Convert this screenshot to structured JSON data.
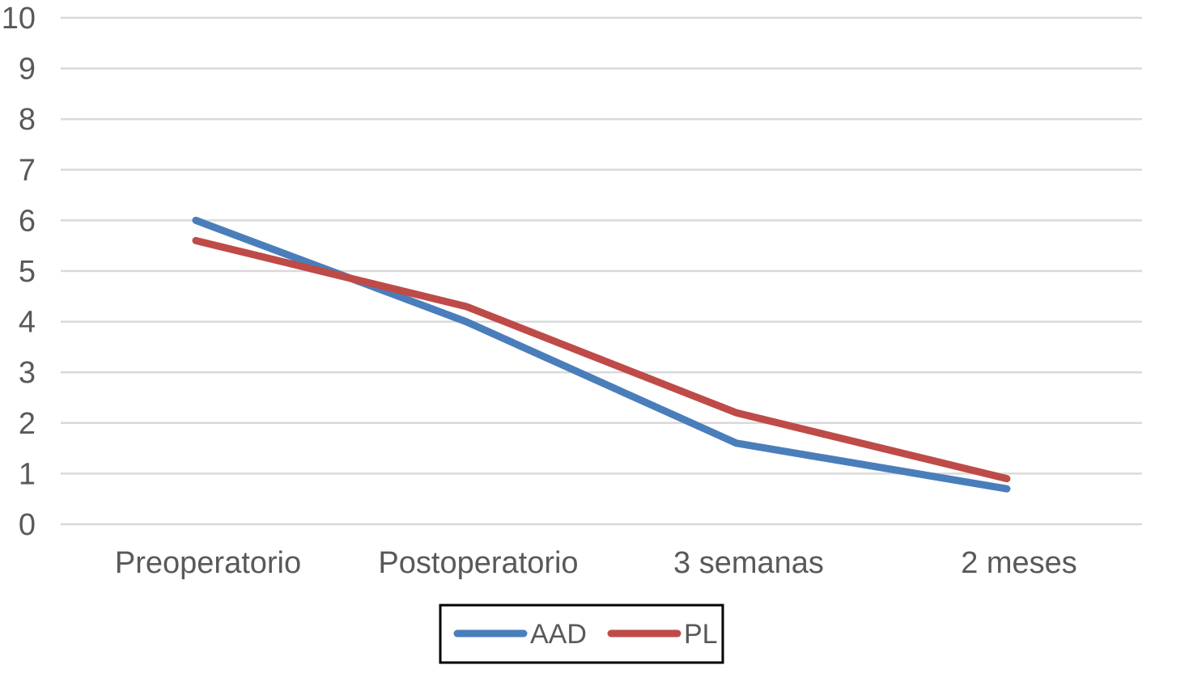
{
  "chart_data": {
    "type": "line",
    "title": "",
    "xlabel": "",
    "ylabel": "",
    "categories": [
      "Preoperatorio",
      "Postoperatorio",
      "3 semanas",
      "2 meses"
    ],
    "ylim": [
      0,
      10
    ],
    "yticks": [
      "0",
      "1",
      "2",
      "3",
      "4",
      "5",
      "6",
      "7",
      "8",
      "9",
      "10"
    ],
    "grid": true,
    "legend_position": "bottom",
    "series": [
      {
        "name": "AAD",
        "values": [
          6.0,
          4.0,
          1.6,
          0.7
        ],
        "color": "#4a7ebb"
      },
      {
        "name": "PL",
        "values": [
          5.6,
          4.3,
          2.2,
          0.9
        ],
        "color": "#be4b48"
      }
    ],
    "colors": {
      "grid": "#d9d9d9",
      "text": "#595959",
      "legend_border": "#000000"
    }
  }
}
